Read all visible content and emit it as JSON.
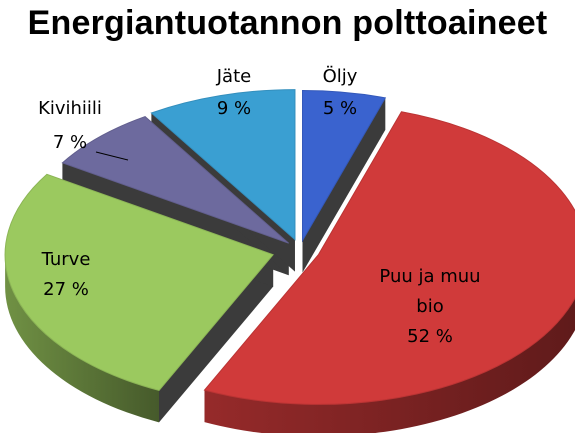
{
  "chart_data": {
    "type": "pie",
    "title": "Energiantuotannon polttoaineet",
    "three_d": true,
    "exploded": true,
    "slices": [
      {
        "name": "Öljy",
        "value": 5,
        "label": "5 %",
        "color": "#3a63cf"
      },
      {
        "name": "Puu ja muu bio",
        "name_lines": [
          "Puu ja muu",
          "bio"
        ],
        "value": 52,
        "label": "52 %",
        "color": "#d03a3a"
      },
      {
        "name": "Turve",
        "value": 27,
        "label": "27 %",
        "color": "#9bc95f"
      },
      {
        "name": "Kivihiili",
        "value": 7,
        "label": "7 %",
        "color": "#6d6a9e"
      },
      {
        "name": "Jäte",
        "value": 9,
        "label": "9 %",
        "color": "#3a9fd2"
      }
    ]
  }
}
